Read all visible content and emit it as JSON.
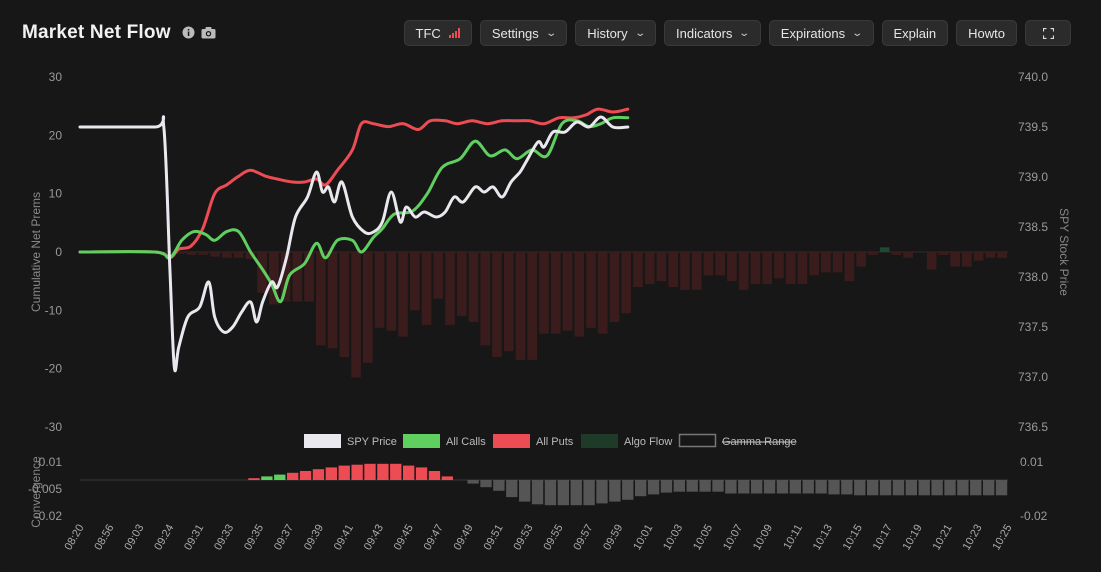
{
  "header": {
    "title": "Market Net Flow",
    "buttons": {
      "tfc": "TFC",
      "settings": "Settings",
      "history": "History",
      "indicators": "Indicators",
      "expirations": "Expirations",
      "explain": "Explain",
      "howto": "Howto"
    }
  },
  "colors": {
    "spy": "#e8e8ee",
    "calls": "#5fcf5f",
    "puts": "#ee4c54",
    "algo_neg": "#3a1c1c",
    "algo_pos": "#1f4a30",
    "conv_pos": "#ee4c54",
    "conv_pos_green": "#5fcf5f",
    "conv_neg": "#555555",
    "background": "#171717"
  },
  "chart_data": [
    {
      "type": "line",
      "ylabel": "Cumulative Net Prems",
      "y2label": "SPY Stock Price",
      "ylim": [
        -30,
        30
      ],
      "y_ticks": [
        30,
        20,
        10,
        0,
        -10,
        -20,
        -30
      ],
      "y2lim": [
        736.5,
        740.0
      ],
      "y2_ticks": [
        "740.0",
        "739.5",
        "739.0",
        "738.5",
        "738.0",
        "737.5",
        "737.0",
        "736.5"
      ],
      "legend": [
        {
          "label": "SPY Price",
          "color": "#e8e8ee"
        },
        {
          "label": "All Calls",
          "color": "#5fcf5f"
        },
        {
          "label": "All Puts",
          "color": "#ee4c54"
        },
        {
          "label": "Algo Flow",
          "color": "#1e3a28"
        },
        {
          "label": "Gamma Range",
          "color": "#888888",
          "struck": true
        }
      ],
      "legend_position": "bottom",
      "series": [
        {
          "name": "SPY Price",
          "axis": "right",
          "points": [
            [
              0,
              739.5
            ],
            [
              2.5,
              739.5
            ],
            [
              2.8,
              739.5
            ],
            [
              3.0,
              738.1
            ],
            [
              3.15,
              737.1
            ],
            [
              3.3,
              737.3
            ],
            [
              3.6,
              737.6
            ],
            [
              4.0,
              737.7
            ],
            [
              4.3,
              737.95
            ],
            [
              4.5,
              737.6
            ],
            [
              4.8,
              737.45
            ],
            [
              5.1,
              737.5
            ],
            [
              5.4,
              737.65
            ],
            [
              5.7,
              737.75
            ],
            [
              5.9,
              737.55
            ],
            [
              6.1,
              737.75
            ],
            [
              6.4,
              737.95
            ],
            [
              6.6,
              737.9
            ],
            [
              6.9,
              738.2
            ],
            [
              7.2,
              738.6
            ],
            [
              7.6,
              738.8
            ],
            [
              7.9,
              739.05
            ],
            [
              8.1,
              738.85
            ],
            [
              8.3,
              738.9
            ],
            [
              8.5,
              738.75
            ],
            [
              8.75,
              738.95
            ],
            [
              9.1,
              738.6
            ],
            [
              9.5,
              738.45
            ],
            [
              9.8,
              738.45
            ],
            [
              10.1,
              738.55
            ],
            [
              10.4,
              738.85
            ],
            [
              10.7,
              738.55
            ],
            [
              10.9,
              738.7
            ],
            [
              11.2,
              738.6
            ],
            [
              11.5,
              738.65
            ],
            [
              11.9,
              738.6
            ],
            [
              12.2,
              738.65
            ],
            [
              12.5,
              738.8
            ],
            [
              12.8,
              738.75
            ],
            [
              13.2,
              738.9
            ],
            [
              13.5,
              738.85
            ],
            [
              13.8,
              738.9
            ],
            [
              14.1,
              738.8
            ],
            [
              14.4,
              738.95
            ],
            [
              14.7,
              739.05
            ],
            [
              14.9,
              739.15
            ],
            [
              15.3,
              739.35
            ],
            [
              15.5,
              739.3
            ],
            [
              15.8,
              739.45
            ],
            [
              16.2,
              739.45
            ],
            [
              16.6,
              739.55
            ],
            [
              17.0,
              739.5
            ],
            [
              17.4,
              739.6
            ],
            [
              17.8,
              739.5
            ],
            [
              18.3,
              739.5
            ]
          ]
        },
        {
          "name": "All Calls",
          "axis": "left",
          "points": [
            [
              0,
              0
            ],
            [
              2.5,
              0
            ],
            [
              3.0,
              -1
            ],
            [
              3.4,
              2
            ],
            [
              3.8,
              3.5
            ],
            [
              4.2,
              3
            ],
            [
              4.5,
              2
            ],
            [
              4.9,
              3.5
            ],
            [
              5.3,
              3.5
            ],
            [
              5.7,
              0
            ],
            [
              6.1,
              -3
            ],
            [
              6.4,
              -5.5
            ],
            [
              6.7,
              -8.5
            ],
            [
              7.0,
              -4
            ],
            [
              7.5,
              -2
            ],
            [
              7.9,
              1.5
            ],
            [
              8.2,
              -1
            ],
            [
              8.6,
              2
            ],
            [
              9.1,
              2
            ],
            [
              9.4,
              0
            ],
            [
              9.8,
              2.5
            ],
            [
              10.1,
              4
            ],
            [
              10.5,
              6.5
            ],
            [
              11.1,
              7
            ],
            [
              11.6,
              10
            ],
            [
              12.1,
              14.5
            ],
            [
              12.7,
              16
            ],
            [
              13.2,
              19
            ],
            [
              13.7,
              16.5
            ],
            [
              14.2,
              17.5
            ],
            [
              14.6,
              16
            ],
            [
              15.1,
              17.5
            ],
            [
              15.6,
              16.5
            ],
            [
              16.1,
              22
            ],
            [
              16.6,
              22.5
            ],
            [
              17.0,
              21.5
            ],
            [
              17.4,
              22
            ],
            [
              17.8,
              23
            ],
            [
              18.3,
              23
            ]
          ]
        },
        {
          "name": "All Puts",
          "axis": "left",
          "points": [
            [
              0,
              0
            ],
            [
              2.5,
              0
            ],
            [
              3.0,
              -1
            ],
            [
              3.3,
              0.5
            ],
            [
              3.7,
              1
            ],
            [
              4.1,
              4
            ],
            [
              4.5,
              10
            ],
            [
              4.9,
              11.5
            ],
            [
              5.3,
              13
            ],
            [
              5.7,
              14
            ],
            [
              6.2,
              13
            ],
            [
              6.6,
              12.5
            ],
            [
              7.1,
              12
            ],
            [
              7.5,
              12
            ],
            [
              7.9,
              12.5
            ],
            [
              8.2,
              11.5
            ],
            [
              8.6,
              14
            ],
            [
              9.1,
              17.5
            ],
            [
              9.4,
              22
            ],
            [
              9.8,
              22
            ],
            [
              10.3,
              21.5
            ],
            [
              10.8,
              22
            ],
            [
              11.3,
              21
            ],
            [
              11.7,
              22.5
            ],
            [
              12.2,
              22.5
            ],
            [
              12.6,
              22
            ],
            [
              13.1,
              22.5
            ],
            [
              13.6,
              22
            ],
            [
              14.1,
              22.5
            ],
            [
              14.5,
              22.5
            ],
            [
              15.0,
              22.5
            ],
            [
              15.5,
              22
            ],
            [
              16.0,
              23
            ],
            [
              16.5,
              23
            ],
            [
              16.9,
              23.5
            ],
            [
              17.3,
              24.5
            ],
            [
              17.8,
              24
            ],
            [
              18.3,
              24.5
            ]
          ]
        }
      ],
      "algo_flow": [
        0,
        0,
        0,
        0,
        0,
        0,
        0,
        0,
        -0.3,
        -0.5,
        -0.5,
        -0.8,
        -1,
        -1,
        -1.2,
        -7,
        -9,
        -8.5,
        -8.5,
        -8.5,
        -16,
        -16.5,
        -18,
        -21.5,
        -19,
        -13,
        -13.5,
        -14.5,
        -10,
        -12.5,
        -8,
        -12.5,
        -11,
        -12,
        -16,
        -18,
        -17,
        -18.5,
        -18.5,
        -14,
        -14,
        -13.5,
        -14.5,
        -13,
        -14,
        -12,
        -10.5,
        -6,
        -5.5,
        -5,
        -6,
        -6.5,
        -6.5,
        -4,
        -4,
        -5,
        -6.5,
        -5.5,
        -5.5,
        -4.5,
        -5.5,
        -5.5,
        -4,
        -3.5,
        -3.5,
        -5,
        -2.5,
        -0.5,
        0.8,
        -0.5,
        -1,
        0,
        -3,
        -0.5,
        -2.5,
        -2.5,
        -1.5,
        -1,
        -1
      ]
    },
    {
      "type": "bar",
      "ylabel": "Convergence",
      "ylim": [
        -0.02,
        0.01
      ],
      "y_ticks": [
        "0.01",
        "-0.005",
        "-0.02"
      ],
      "y2_ticks": [
        "0.01",
        "-0.02"
      ],
      "values": [
        0,
        0,
        0,
        0,
        0,
        0,
        0,
        0,
        0,
        0,
        0,
        0,
        0,
        0.001,
        0.002,
        0.003,
        0.004,
        0.005,
        0.006,
        0.007,
        0.008,
        0.0085,
        0.009,
        0.009,
        0.009,
        0.008,
        0.007,
        0.005,
        0.002,
        0,
        -0.002,
        -0.004,
        -0.006,
        -0.0095,
        -0.012,
        -0.0135,
        -0.014,
        -0.014,
        -0.014,
        -0.014,
        -0.013,
        -0.012,
        -0.011,
        -0.009,
        -0.008,
        -0.007,
        -0.0065,
        -0.0065,
        -0.0065,
        -0.0065,
        -0.0075,
        -0.0075,
        -0.0075,
        -0.0075,
        -0.0075,
        -0.0075,
        -0.0075,
        -0.0075,
        -0.008,
        -0.008,
        -0.0085,
        -0.0085,
        -0.0085,
        -0.0085,
        -0.0085,
        -0.0085,
        -0.0085,
        -0.0085,
        -0.0085,
        -0.0085,
        -0.0085,
        -0.0085
      ],
      "green_bars": [
        14,
        15
      ],
      "x_ticks": [
        "08:20",
        "08:56",
        "09:03",
        "09:24",
        "09:31",
        "09:33",
        "09:35",
        "09:37",
        "09:39",
        "09:41",
        "09:43",
        "09:45",
        "09:47",
        "09:49",
        "09:51",
        "09:53",
        "09:55",
        "09:57",
        "09:59",
        "10:01",
        "10:03",
        "10:05",
        "10:07",
        "10:09",
        "10:11",
        "10:13",
        "10:15",
        "10:17",
        "10:19",
        "10:21",
        "10:23",
        "10:25"
      ]
    }
  ]
}
